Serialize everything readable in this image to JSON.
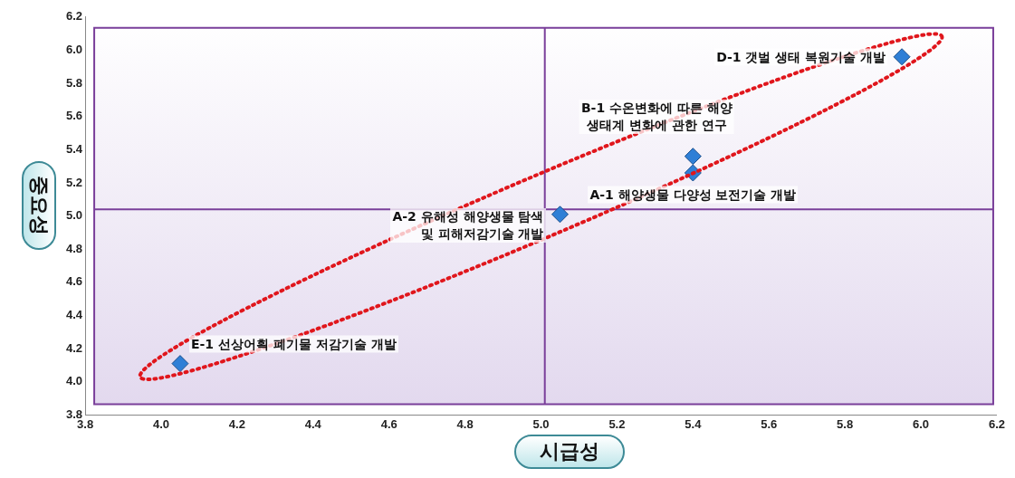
{
  "chart_data": {
    "type": "scatter",
    "xlabel": "시급성",
    "ylabel": "중요성",
    "xlim": [
      3.8,
      6.2
    ],
    "ylim": [
      3.8,
      6.2
    ],
    "xticks": [
      {
        "value": 3.8,
        "label": "3.8"
      },
      {
        "value": 4,
        "label": "4.0"
      },
      {
        "value": 4.2,
        "label": "4.2"
      },
      {
        "value": 4.4,
        "label": "4.4"
      },
      {
        "value": 4.6,
        "label": "4.6"
      },
      {
        "value": 4.8,
        "label": "4.8"
      },
      {
        "value": 5,
        "label": "5.0"
      },
      {
        "value": 5.2,
        "label": "5.2"
      },
      {
        "value": 5.4,
        "label": "5.4"
      },
      {
        "value": 5.6,
        "label": "5.6"
      },
      {
        "value": 5.8,
        "label": "5.8"
      },
      {
        "value": 6,
        "label": "6.0"
      },
      {
        "value": 6.2,
        "label": "6.2"
      }
    ],
    "yticks": [
      {
        "value": 3.8,
        "label": "3.8"
      },
      {
        "value": 4,
        "label": "4.0"
      },
      {
        "value": 4.2,
        "label": "4.2"
      },
      {
        "value": 4.4,
        "label": "4.4"
      },
      {
        "value": 4.6,
        "label": "4.6"
      },
      {
        "value": 4.8,
        "label": "4.8"
      },
      {
        "value": 5,
        "label": "5.0"
      },
      {
        "value": 5.2,
        "label": "5.2"
      },
      {
        "value": 5.4,
        "label": "5.4"
      },
      {
        "value": 5.6,
        "label": "5.6"
      },
      {
        "value": 5.8,
        "label": "5.8"
      },
      {
        "value": 6,
        "label": "6.0"
      },
      {
        "value": 6.2,
        "label": "6.2"
      }
    ],
    "series": [
      {
        "color": "#2f7fd6",
        "x": [
          5.95,
          5.4,
          5.4,
          5.05,
          4.05
        ],
        "values": [
          5.96,
          5.36,
          5.26,
          5.01,
          4.11
        ]
      }
    ],
    "marker": "diamond",
    "grid": false,
    "ref_lines": [
      {
        "axis": "x",
        "value": 5.01,
        "color": "#7a3f9a"
      },
      {
        "axis": "y",
        "value": 5.04,
        "color": "#7a3f9a"
      }
    ],
    "annotations": [
      {
        "text": "D-1 갯벌 생태 복원기술 개발",
        "x": 5.95,
        "y": 5.96
      },
      {
        "text": "B-1 수온변화에 따른 해양\n생태계 변화에 관한 연구",
        "x": 5.4,
        "y": 5.36
      },
      {
        "text": "A-1 해양생물 다양성 보전기술 개발",
        "x": 5.4,
        "y": 5.26
      },
      {
        "text": "A-2 유해성 해양생물 탐색\n및 피해저감기술 개발",
        "x": 5.05,
        "y": 5.01
      },
      {
        "text": "E-1 선상어획 폐기물 저감기술 개발",
        "x": 4.05,
        "y": 4.11
      }
    ]
  }
}
